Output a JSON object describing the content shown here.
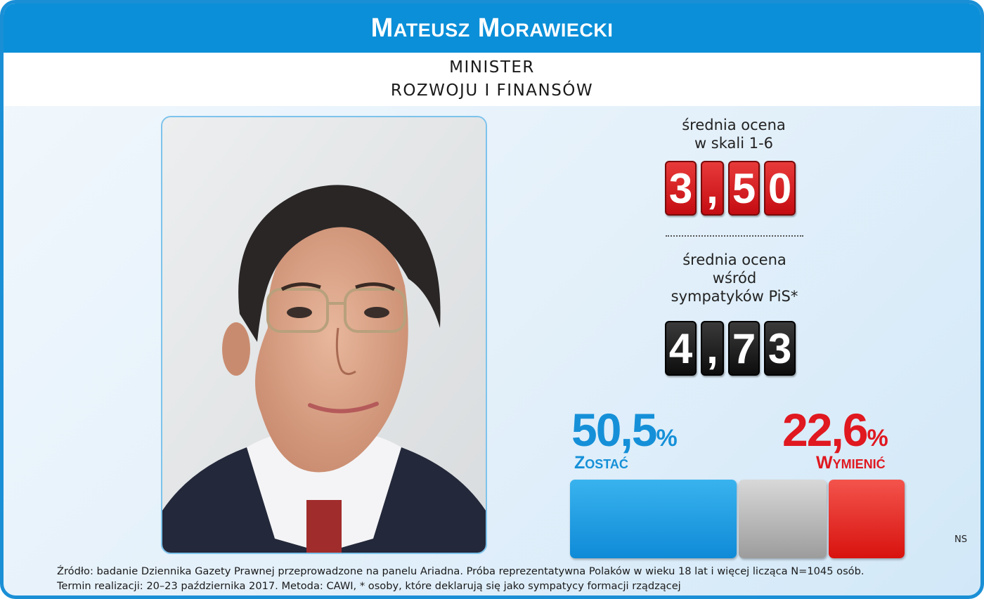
{
  "header": {
    "name": "Mateusz Morawiecki"
  },
  "role": {
    "line1": "MINISTER",
    "line2": "ROZWOJU I FINANSÓW"
  },
  "rating_overall": {
    "label_line1": "średnia ocena",
    "label_line2": "w skali 1-6",
    "value": "3,50",
    "digits": [
      "3",
      ",",
      "5",
      "0"
    ]
  },
  "rating_pis": {
    "label_line1": "średnia ocena",
    "label_line2": "wśród",
    "label_line3": "sympatyków PiS*",
    "value": "4,73",
    "digits": [
      "4",
      ",",
      "7",
      "3"
    ]
  },
  "poll": {
    "stay": {
      "value": "50,5",
      "percent_sign": "%",
      "label": "Zostać",
      "share": 50.5,
      "color": "#1590d8"
    },
    "replace": {
      "value": "22,6",
      "percent_sign": "%",
      "label": "Wymienić",
      "share": 22.6,
      "color": "#e01820"
    },
    "neutral_color": "#b4b4b4"
  },
  "credit": "NS",
  "source": {
    "line1": "Źródło: badanie Dziennika Gazety Prawnej przeprowadzone na panelu Ariadna. Próba reprezentatywna Polaków w wieku 18 lat i więcej licząca N=1045 osób.",
    "line2": "Termin realizacji: 20–23 października 2017. Metoda: CAWI, * osoby, które deklarują się jako sympatycy formacji rządzącej"
  }
}
